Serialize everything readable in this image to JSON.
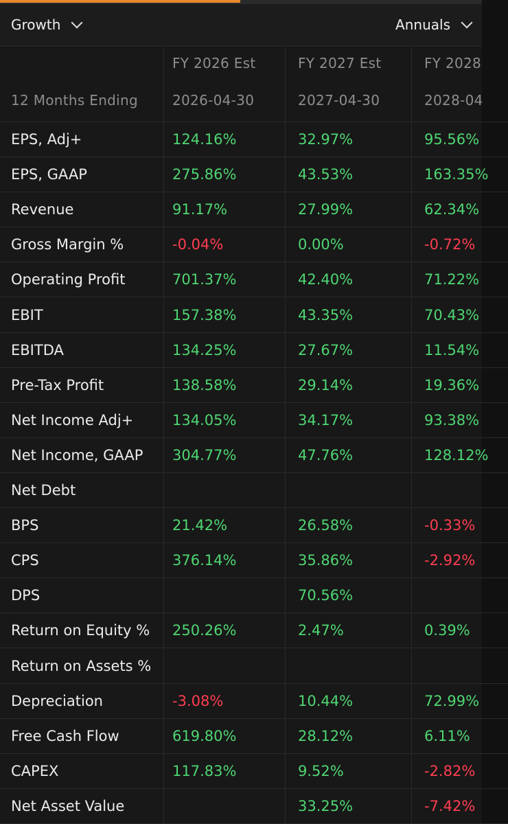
{
  "header": {
    "left_dropdown": "Growth",
    "right_dropdown": "Annuals"
  },
  "columns": {
    "fiscal_years": [
      "",
      "FY 2026 Est",
      "FY 2027 Est",
      "FY 2028"
    ],
    "period_label": "12 Months Ending",
    "period_ends": [
      "2026-04-30",
      "2027-04-30",
      "2028-04"
    ]
  },
  "colors": {
    "positive": "#4fd672",
    "negative": "#ff3d50",
    "accent": "#e8892b"
  },
  "rows": [
    {
      "label": "EPS, Adj+",
      "values": [
        "124.16%",
        "32.97%",
        "95.56%"
      ]
    },
    {
      "label": "EPS, GAAP",
      "values": [
        "275.86%",
        "43.53%",
        "163.35%"
      ]
    },
    {
      "label": "Revenue",
      "values": [
        "91.17%",
        "27.99%",
        "62.34%"
      ]
    },
    {
      "label": "Gross Margin %",
      "values": [
        "-0.04%",
        "0.00%",
        "-0.72%"
      ]
    },
    {
      "label": "Operating Profit",
      "values": [
        "701.37%",
        "42.40%",
        "71.22%"
      ]
    },
    {
      "label": "EBIT",
      "values": [
        "157.38%",
        "43.35%",
        "70.43%"
      ]
    },
    {
      "label": "EBITDA",
      "values": [
        "134.25%",
        "27.67%",
        "11.54%"
      ]
    },
    {
      "label": "Pre-Tax Profit",
      "values": [
        "138.58%",
        "29.14%",
        "19.36%"
      ]
    },
    {
      "label": "Net Income Adj+",
      "values": [
        "134.05%",
        "34.17%",
        "93.38%"
      ]
    },
    {
      "label": "Net Income, GAAP",
      "values": [
        "304.77%",
        "47.76%",
        "128.12%"
      ]
    },
    {
      "label": "Net Debt",
      "values": [
        "",
        "",
        ""
      ]
    },
    {
      "label": "BPS",
      "values": [
        "21.42%",
        "26.58%",
        "-0.33%"
      ]
    },
    {
      "label": "CPS",
      "values": [
        "376.14%",
        "35.86%",
        "-2.92%"
      ]
    },
    {
      "label": "DPS",
      "values": [
        "",
        "70.56%",
        ""
      ]
    },
    {
      "label": "Return on Equity %",
      "values": [
        "250.26%",
        "2.47%",
        "0.39%"
      ]
    },
    {
      "label": "Return on Assets %",
      "values": [
        "",
        "",
        ""
      ]
    },
    {
      "label": "Depreciation",
      "values": [
        "-3.08%",
        "10.44%",
        "72.99%"
      ]
    },
    {
      "label": "Free Cash Flow",
      "values": [
        "619.80%",
        "28.12%",
        "6.11%"
      ]
    },
    {
      "label": "CAPEX",
      "values": [
        "117.83%",
        "9.52%",
        "-2.82%"
      ]
    },
    {
      "label": "Net Asset Value",
      "values": [
        "",
        "33.25%",
        "-7.42%"
      ]
    }
  ]
}
